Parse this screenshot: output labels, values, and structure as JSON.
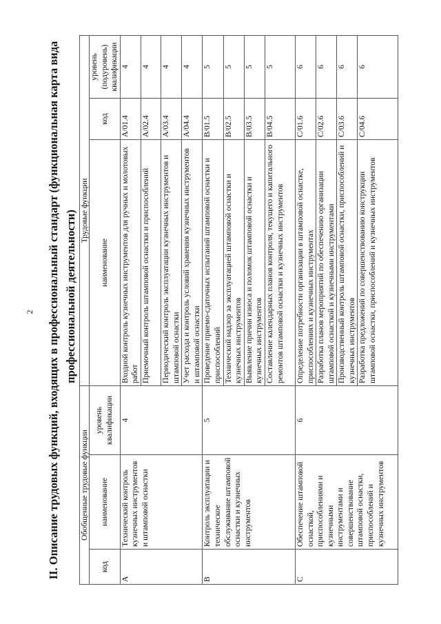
{
  "page_number": "2",
  "title": {
    "line1": "II. Описание трудовых функций, входящих в профессиональный стандарт (функциональная карта вида",
    "line2": "профессиональной деятельности)"
  },
  "table": {
    "header": {
      "generalized": "Обобщенные трудовые функции",
      "functions": "Трудовые функции",
      "gen_code": "код",
      "gen_name": "наименование",
      "gen_level": "уровень квалификации",
      "fn_name": "наименование",
      "fn_code": "код",
      "fn_level": "уровень (подуровень) квалификации"
    },
    "groups": [
      {
        "code": "A",
        "name": "Технический контроль кузнечных инструментов и штамповой оснастки",
        "level": "4",
        "functions": [
          {
            "name": "Входной контроль кузнечных инструментов для ручных и молотовых работ",
            "code": "A/01.4",
            "level": "4"
          },
          {
            "name": "Приемочный контроль штамповой оснастки и приспособлений",
            "code": "A/02.4",
            "level": "4"
          },
          {
            "name": "Периодический контроль эксплуатации кузнечных инструментов и штамповой оснастки",
            "code": "A/03.4",
            "level": "4"
          },
          {
            "name": "Учет расхода и контроль условий хранения кузнечных инструментов и штамповой оснастки",
            "code": "A/04.4",
            "level": "4"
          }
        ]
      },
      {
        "code": "B",
        "name": "Контроль эксплуатации и техническое обслуживание штамповой оснастки и кузнечных инструментов",
        "level": "5",
        "functions": [
          {
            "name": "Проведение приемо-сдаточных испытаний штамповой оснастки и приспособлений",
            "code": "B/01.5",
            "level": "5"
          },
          {
            "name": "Технический надзор за эксплуатацией штамповой оснастки и кузнечных инструментов",
            "code": "B/02.5",
            "level": "5"
          },
          {
            "name": "Выявление причин износа и поломок штамповой оснастки и кузнечных инструментов",
            "code": "B/03.5",
            "level": "5"
          },
          {
            "name": "Составление календарных планов контроля, текущего и капитального ремонтов штамповой оснастки и кузнечных инструментов",
            "code": "B/04.5",
            "level": "5"
          }
        ]
      },
      {
        "code": "C",
        "name": "Обеспечение штамповой оснасткой, приспособлениями и кузнечными инструментами и совершенствование штамповой оснастки, приспособлений и кузнечных инструментов",
        "level": "6",
        "functions": [
          {
            "name": "Определение потребности организации в штамповой оснастке, приспособлениях и кузнечных инструментах",
            "code": "C/01.6",
            "level": "6"
          },
          {
            "name": "Разработка планов мероприятий по обеспечению организации штамповой оснасткой и кузнечными инструментами",
            "code": "C/02.6",
            "level": "6"
          },
          {
            "name": "Производственный контроль штамповой оснастки, приспособлений и кузнечных инструментов",
            "code": "C/03.6",
            "level": "6"
          },
          {
            "name": "Разработка предложений по совершенствованию конструкции штамповой оснастки, приспособлений и кузнечных инструментов",
            "code": "C/04.6",
            "level": "6"
          }
        ]
      }
    ]
  }
}
